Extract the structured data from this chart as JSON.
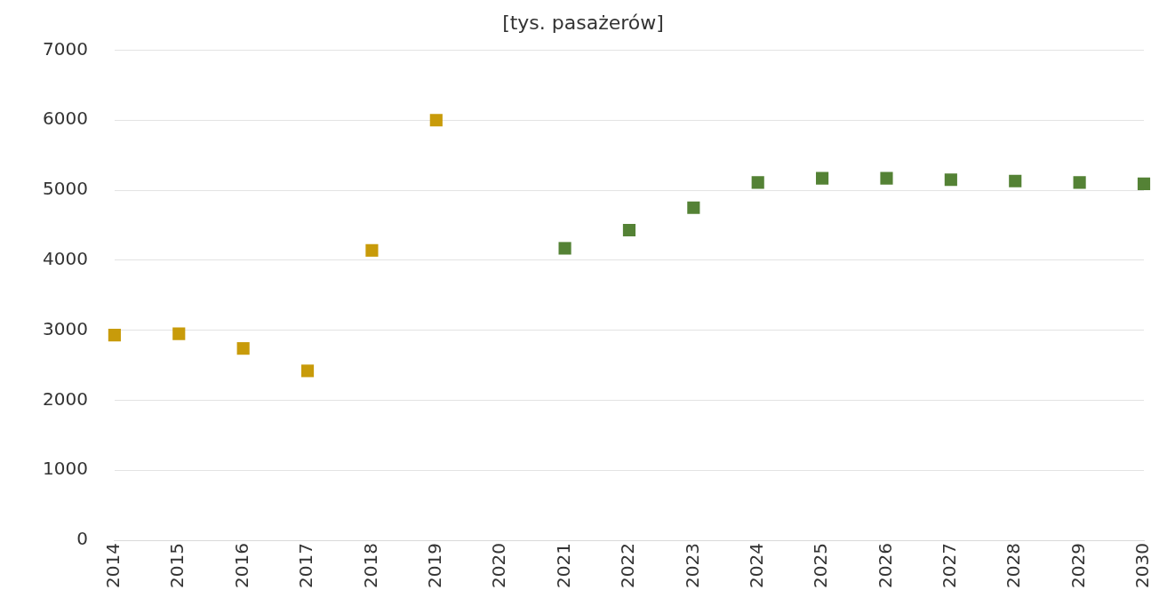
{
  "chart_data": {
    "type": "scatter",
    "title": "[tys. pasażerów]",
    "categories": [
      "2014",
      "2015",
      "2016",
      "2017",
      "2018",
      "2019",
      "2020",
      "2021",
      "2022",
      "2023",
      "2024",
      "2025",
      "2026",
      "2027",
      "2028",
      "2029",
      "2030"
    ],
    "series": [
      {
        "color": "#c89b0a",
        "values": [
          2930,
          2950,
          2740,
          2420,
          4140,
          6000,
          null,
          null,
          null,
          null,
          null,
          null,
          null,
          null,
          null,
          null,
          null
        ]
      },
      {
        "color": "#548235",
        "values": [
          null,
          null,
          null,
          null,
          null,
          null,
          null,
          4170,
          4430,
          4750,
          5110,
          5170,
          5170,
          5150,
          5130,
          5110,
          5090
        ]
      }
    ],
    "ylim": [
      0,
      7000
    ],
    "yticks": [
      0,
      1000,
      2000,
      3000,
      4000,
      5000,
      6000,
      7000
    ],
    "grid": "y",
    "legend": false,
    "marker": "square"
  }
}
